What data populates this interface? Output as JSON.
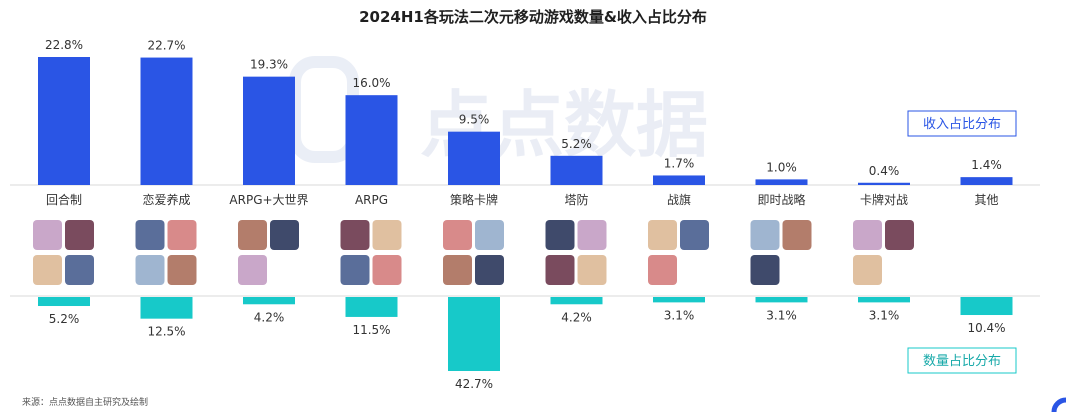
{
  "chart_data": {
    "type": "bar",
    "title": "2024H1各玩法二次元移动游戏数量&收入占比分布",
    "categories": [
      "回合制",
      "恋爱养成",
      "ARPG+大世界",
      "ARPG",
      "策略卡牌",
      "塔防",
      "战旗",
      "即时战略",
      "卡牌对战",
      "其他"
    ],
    "series": [
      {
        "name": "收入占比分布",
        "values": [
          22.8,
          22.7,
          19.3,
          16.0,
          9.5,
          5.2,
          1.7,
          1.0,
          0.4,
          1.4
        ]
      },
      {
        "name": "数量占比分布",
        "values": [
          5.2,
          12.5,
          4.2,
          11.5,
          42.7,
          4.2,
          3.1,
          3.1,
          3.1,
          10.4
        ]
      }
    ],
    "revenue_labels": [
      "22.8%",
      "22.7%",
      "19.3%",
      "16.0%",
      "9.5%",
      "5.2%",
      "1.7%",
      "1.0%",
      "0.4%",
      "1.4%"
    ],
    "count_labels": [
      "5.2%",
      "12.5%",
      "4.2%",
      "11.5%",
      "42.7%",
      "4.2%",
      "3.1%",
      "3.1%",
      "3.1%",
      "10.4%"
    ],
    "icon_counts": [
      4,
      4,
      3,
      4,
      4,
      4,
      3,
      3,
      3,
      0
    ]
  },
  "colors": {
    "revenue": "#2A55E5",
    "count": "#17C9C9",
    "watermark": "#E8ECF5"
  },
  "watermark": "点点数据",
  "source": "来源：点点数据自主研究及绘制"
}
